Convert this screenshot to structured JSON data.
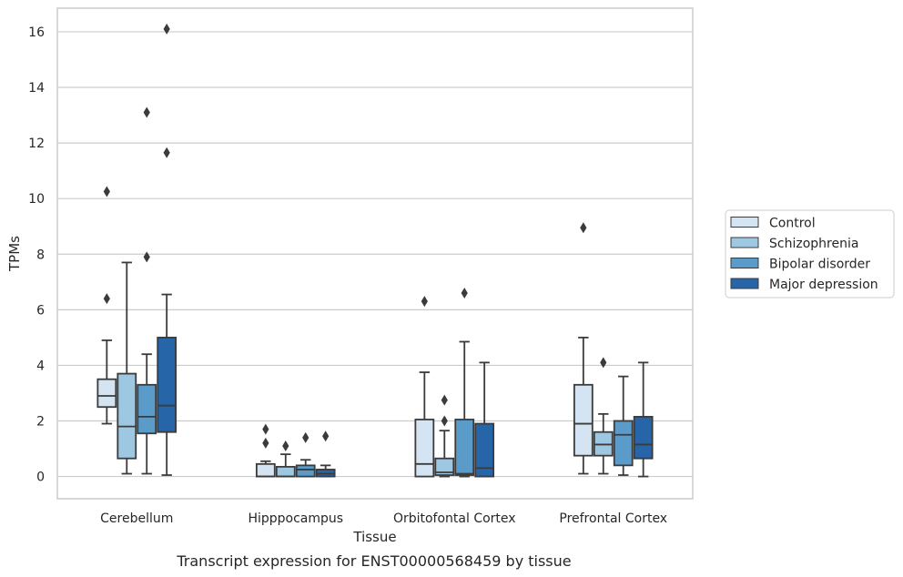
{
  "chart_data": {
    "type": "box",
    "caption": "Transcript expression for ENST00000568459 by tissue",
    "xlabel": "Tissue",
    "ylabel": "TPMs",
    "ylim": [
      -0.8,
      16.85
    ],
    "yticks": [
      0,
      2,
      4,
      6,
      8,
      10,
      12,
      14,
      16
    ],
    "grid": "horizontal",
    "legend_position": "right-outside",
    "categories": [
      "Cerebellum",
      "Hipppocampus",
      "Orbitofontal Cortex",
      "Prefrontal Cortex"
    ],
    "series": [
      {
        "name": "Control",
        "color": "#d5e4f3",
        "boxes": [
          {
            "whisker_low": 1.9,
            "q1": 2.5,
            "median": 2.9,
            "q3": 3.5,
            "whisker_high": 4.9,
            "outliers": [
              6.4,
              10.25
            ]
          },
          {
            "whisker_low": 0.0,
            "q1": 0.0,
            "median": 0.0,
            "q3": 0.45,
            "whisker_high": 0.55,
            "outliers": [
              1.2,
              1.7
            ]
          },
          {
            "whisker_low": 0.0,
            "q1": 0.0,
            "median": 0.45,
            "q3": 2.05,
            "whisker_high": 3.75,
            "outliers": [
              6.3
            ]
          },
          {
            "whisker_low": 0.1,
            "q1": 0.75,
            "median": 1.9,
            "q3": 3.3,
            "whisker_high": 5.0,
            "outliers": [
              8.95
            ]
          }
        ]
      },
      {
        "name": "Schizophrenia",
        "color": "#9ec8e1",
        "boxes": [
          {
            "whisker_low": 0.1,
            "q1": 0.65,
            "median": 1.8,
            "q3": 3.7,
            "whisker_high": 7.7,
            "outliers": []
          },
          {
            "whisker_low": 0.0,
            "q1": 0.0,
            "median": 0.0,
            "q3": 0.35,
            "whisker_high": 0.8,
            "outliers": [
              1.1
            ]
          },
          {
            "whisker_low": 0.0,
            "q1": 0.05,
            "median": 0.15,
            "q3": 0.65,
            "whisker_high": 1.65,
            "outliers": [
              2.0,
              2.75
            ]
          },
          {
            "whisker_low": 0.1,
            "q1": 0.75,
            "median": 1.15,
            "q3": 1.6,
            "whisker_high": 2.25,
            "outliers": [
              4.1
            ]
          }
        ]
      },
      {
        "name": "Bipolar disorder",
        "color": "#5a9bc9",
        "boxes": [
          {
            "whisker_low": 0.1,
            "q1": 1.55,
            "median": 2.15,
            "q3": 3.3,
            "whisker_high": 4.4,
            "outliers": [
              7.9,
              13.1
            ]
          },
          {
            "whisker_low": 0.0,
            "q1": 0.0,
            "median": 0.25,
            "q3": 0.4,
            "whisker_high": 0.6,
            "outliers": [
              1.4
            ]
          },
          {
            "whisker_low": 0.0,
            "q1": 0.05,
            "median": 0.1,
            "q3": 2.05,
            "whisker_high": 4.85,
            "outliers": [
              6.6
            ]
          },
          {
            "whisker_low": 0.05,
            "q1": 0.4,
            "median": 1.5,
            "q3": 2.0,
            "whisker_high": 3.6,
            "outliers": []
          }
        ]
      },
      {
        "name": "Major depression",
        "color": "#2565a8",
        "boxes": [
          {
            "whisker_low": 0.05,
            "q1": 1.6,
            "median": 2.55,
            "q3": 5.0,
            "whisker_high": 6.55,
            "outliers": [
              11.65,
              16.1
            ]
          },
          {
            "whisker_low": 0.0,
            "q1": 0.0,
            "median": 0.1,
            "q3": 0.25,
            "whisker_high": 0.4,
            "outliers": [
              1.45
            ]
          },
          {
            "whisker_low": 0.0,
            "q1": 0.0,
            "median": 0.3,
            "q3": 1.9,
            "whisker_high": 4.1,
            "outliers": []
          },
          {
            "whisker_low": 0.0,
            "q1": 0.65,
            "median": 1.15,
            "q3": 2.15,
            "whisker_high": 4.1,
            "outliers": []
          }
        ]
      }
    ]
  }
}
